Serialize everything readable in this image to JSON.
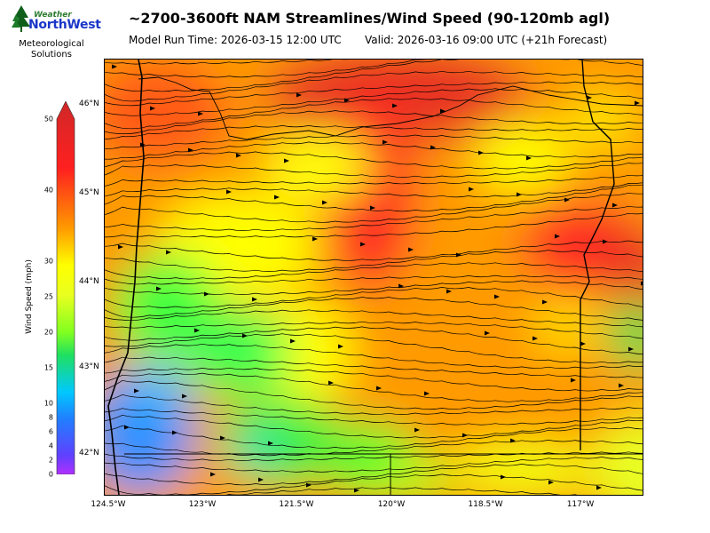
{
  "title": "~2700-3600ft NAM Streamlines/Wind Speed (90-120mb agl)",
  "model_run": "Model Run Time: 2026-03-15 12:00 UTC",
  "valid": "Valid: 2026-03-16 09:00 UTC  (+21h Forecast)",
  "logo": {
    "line1": "Weather",
    "line2": "NorthWest",
    "sub1": "Meteorological",
    "sub2": "Solutions"
  },
  "latitude_labels": [
    "46°N",
    "45°N",
    "44°N",
    "43°N",
    "42°N"
  ],
  "longitude_labels": [
    "124.5°W",
    "123°W",
    "121.5°W",
    "120°W",
    "118.5°W",
    "117°W"
  ],
  "colorbar": {
    "label": "Wind Speed (mph)",
    "ticks": [
      "50",
      "40",
      "30",
      "25",
      "20",
      "15",
      "10",
      "8",
      "6",
      "4",
      "2",
      "0"
    ],
    "colors": {
      "0": "#b030ff",
      "5": "#3080ff",
      "10": "#00c8ff",
      "15": "#20e060",
      "20": "#d8ff20",
      "25": "#ffff00",
      "30": "#ff9a00",
      "40": "#ff2020",
      "50": "#d02828"
    }
  },
  "map": {
    "domain": "Oregon",
    "wind_field_colors": [
      "#ff9a00",
      "#ff2020",
      "#e63020",
      "#ffff00",
      "#30e840",
      "#30a0ff",
      "#ff7a10"
    ]
  }
}
